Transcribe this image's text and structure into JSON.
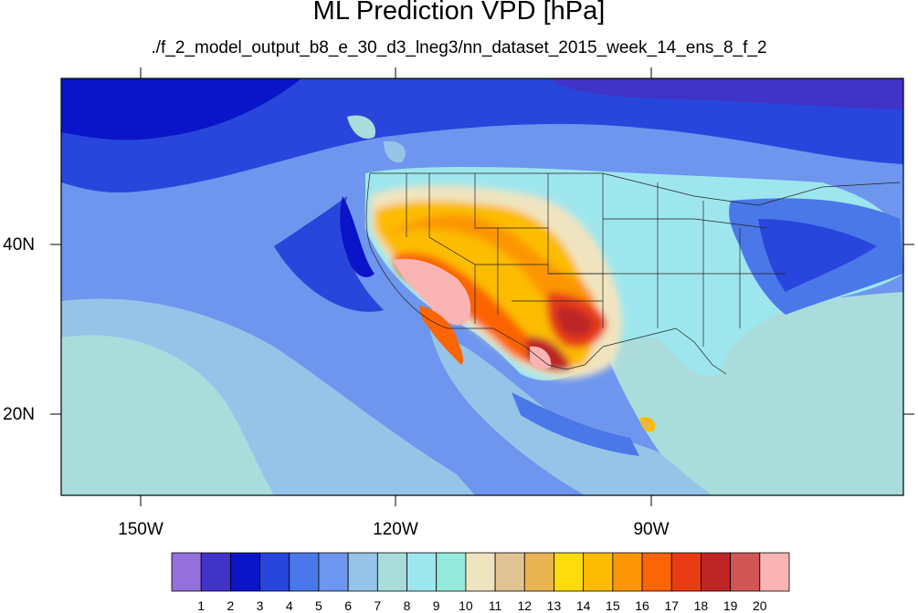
{
  "title": "ML Prediction VPD [hPa]",
  "subtitle": "./f_2_model_output_b8_e_30_d3_lneg3/nn_dataset_2015_week_14_ens_8_f_2",
  "lon_labels": [
    "150W",
    "120W",
    "90W"
  ],
  "lat_labels": [
    "40N",
    "20N"
  ],
  "colorbar": {
    "labels": [
      "1",
      "2",
      "3",
      "4",
      "5",
      "6",
      "7",
      "8",
      "9",
      "10",
      "11",
      "12",
      "13",
      "14",
      "15",
      "16",
      "17",
      "18",
      "19",
      "20"
    ],
    "colors": [
      "#9370db",
      "#4132c8",
      "#0a14c8",
      "#2846dc",
      "#4a78e8",
      "#6e96ee",
      "#96c4e8",
      "#aadcdc",
      "#9ee6ee",
      "#96eadc",
      "#f0e4c0",
      "#e0c494",
      "#e8b454",
      "#fcdc0c",
      "#fcbc04",
      "#fc9604",
      "#fc6404",
      "#e83c14",
      "#be2626",
      "#d25656",
      "#fab4b4"
    ]
  },
  "map_colors": {
    "ocean_deep": "#4a78e8",
    "ocean_mid": "#6e96ee",
    "ocean_light": "#96c4e8",
    "ocean_pale": "#aadcdc",
    "land_east": "#9ee6ee",
    "north": "#2846dc",
    "north_dark": "#0a14c8",
    "purple": "#4132c8"
  }
}
